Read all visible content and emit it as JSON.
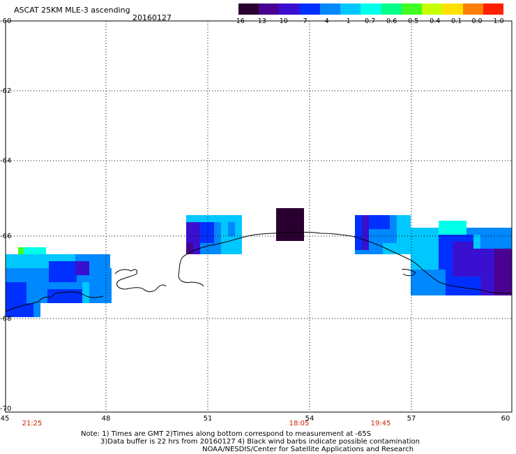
{
  "header": {
    "title": "ASCAT 25KM MLE-3 ascending",
    "date": "20160127"
  },
  "colorbar": {
    "labels": [
      "-16",
      "-13",
      "-10",
      "-7",
      "-4",
      "-1",
      "-0.7",
      "-0.6",
      "-0.5",
      "-0.4",
      "-0.1",
      "0.0",
      "1.0"
    ],
    "colors": [
      "#2a0030",
      "#4a0090",
      "#3a10d0",
      "#0030ff",
      "#0088ff",
      "#00c8ff",
      "#00ffe8",
      "#00ff88",
      "#40ff20",
      "#c8ff00",
      "#ffe000",
      "#ff8000",
      "#ff2000"
    ]
  },
  "axes": {
    "y_labels": [
      "-60",
      "-62",
      "-64",
      "-66",
      "-68",
      "-70"
    ],
    "x_labels": [
      "45",
      "48",
      "51",
      "54",
      "57",
      "60"
    ],
    "lon_range": [
      45,
      60
    ],
    "lat_range": [
      -70,
      -60
    ]
  },
  "times": [
    {
      "lon": 45.8,
      "label": "21:25"
    },
    {
      "lon": 53.8,
      "label": "18:05"
    },
    {
      "lon": 56.9,
      "label": "19:45"
    }
  ],
  "notes": {
    "line1": "Note: 1) Times are GMT 2)Times along bottom correspond to measurement at -65S",
    "line2": "3)Data buffer is 22 hrs from 20160127 4) Black wind barbs indicate possible contamination",
    "line3": "NOAA/NESDIS/Center for Satellite Applications and Research"
  }
}
